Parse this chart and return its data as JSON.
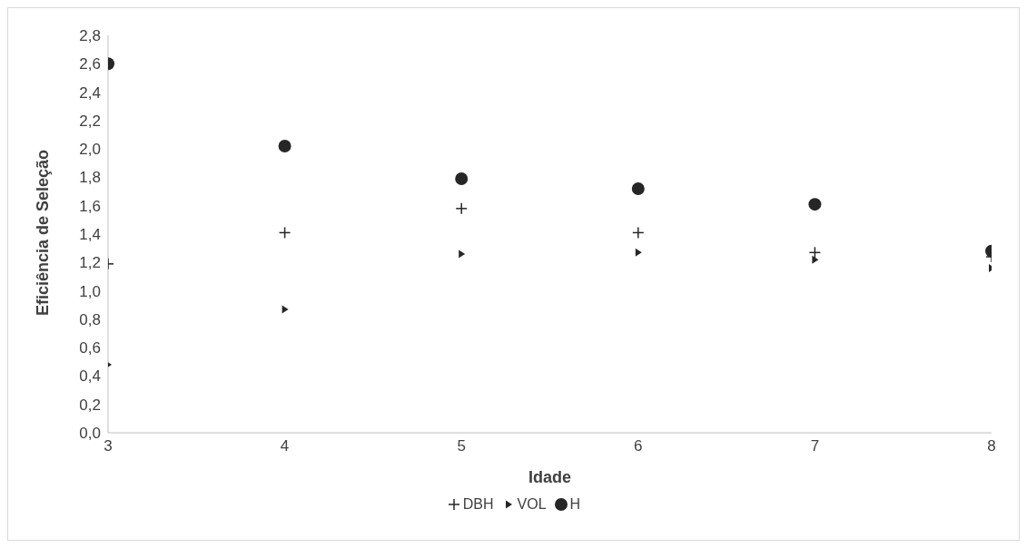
{
  "chart_data": {
    "type": "scatter",
    "xlabel": "Idade",
    "ylabel": "Eficiência de Seleção",
    "x": [
      3,
      4,
      5,
      6,
      7,
      8
    ],
    "series": [
      {
        "name": "DBH",
        "color": "#262626",
        "marker": "cross",
        "values": [
          1.19,
          1.41,
          1.58,
          1.41,
          1.27,
          1.24
        ]
      },
      {
        "name": "VOL",
        "color": "#262626",
        "marker": "triangle",
        "values": [
          0.48,
          0.87,
          1.26,
          1.27,
          1.22,
          1.16
        ]
      },
      {
        "name": "H",
        "color": "#262626",
        "marker": "circle",
        "values": [
          2.6,
          2.02,
          1.79,
          1.72,
          1.61,
          1.28
        ]
      }
    ],
    "xlim": [
      3,
      8
    ],
    "xticks": [
      3,
      4,
      5,
      6,
      7,
      8
    ],
    "ylim": [
      0,
      2.8
    ],
    "yticks": [
      {
        "value": 0,
        "label": "0,0"
      },
      {
        "value": 0.2,
        "label": "0,2"
      },
      {
        "value": 0.4,
        "label": "0,4"
      },
      {
        "value": 0.6,
        "label": "0,6"
      },
      {
        "value": 0.8,
        "label": "0,8"
      },
      {
        "value": 1,
        "label": "1,0"
      },
      {
        "value": 1.2,
        "label": "1,2"
      },
      {
        "value": 1.4,
        "label": "1,4"
      },
      {
        "value": 1.6,
        "label": "1,6"
      },
      {
        "value": 1.8,
        "label": "1,8"
      },
      {
        "value": 2,
        "label": "2,0"
      },
      {
        "value": 2.2,
        "label": "2,2"
      },
      {
        "value": 2.4,
        "label": "2,4"
      },
      {
        "value": 2.6,
        "label": "2,6"
      },
      {
        "value": 2.8,
        "label": "2,8"
      }
    ],
    "grid": false,
    "legend": "bottom"
  }
}
